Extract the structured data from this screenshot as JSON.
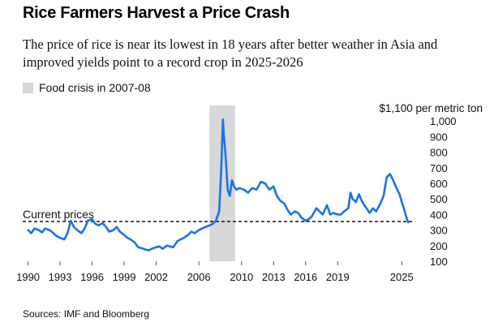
{
  "header": {
    "title": "Rice Farmers Harvest a Price Crash",
    "subtitle": "The price of rice is near its lowest in 18 years after better weather in Asia and improved yields point to a record crop in 2025-2026"
  },
  "legend": {
    "shade_label": "Food crisis in 2007-08"
  },
  "footer": {
    "source": "Sources: IMF and Bloomberg"
  },
  "colors": {
    "line": "#1a73e8",
    "shade": "#d8d8d8",
    "reference": "#000000"
  },
  "chart_data": {
    "type": "line",
    "title": "Rice Farmers Harvest a Price Crash",
    "ylabel": "$1,100 per metric ton",
    "xlabel": "",
    "xlim": [
      1989.5,
      2026.5
    ],
    "ylim": [
      100,
      1100
    ],
    "x_ticks": [
      1990,
      1993,
      1996,
      1999,
      2002,
      2006,
      2010,
      2013,
      2016,
      2019,
      2025
    ],
    "x_tick_labels": [
      "1990",
      "1993",
      "1996",
      "1999",
      "2002",
      "2006",
      "2010",
      "2013",
      "2016",
      "2019",
      "2025"
    ],
    "y_ticks": [
      100,
      200,
      300,
      400,
      500,
      600,
      700,
      800,
      900,
      1000,
      1100
    ],
    "y_tick_labels": [
      "100",
      "200",
      "300",
      "400",
      "500",
      "600",
      "700",
      "800",
      "900",
      "1,000",
      "$1,100 per metric ton"
    ],
    "shaded_region": {
      "label": "Food crisis in 2007-08",
      "x": [
        2007.0,
        2009.4
      ]
    },
    "reference_line": {
      "label": "Current prices",
      "y": 355
    },
    "series": [
      {
        "name": "",
        "x": [
          1990.0,
          1990.3,
          1990.6,
          1991.0,
          1991.3,
          1991.6,
          1992.0,
          1992.3,
          1992.6,
          1993.0,
          1993.4,
          1993.7,
          1994.0,
          1994.3,
          1994.6,
          1995.0,
          1995.3,
          1995.6,
          1996.0,
          1996.3,
          1996.6,
          1997.0,
          1997.3,
          1997.6,
          1998.0,
          1998.3,
          1998.6,
          1999.0,
          1999.3,
          1999.6,
          2000.0,
          2000.3,
          2000.6,
          2001.0,
          2001.3,
          2001.6,
          2002.0,
          2002.3,
          2002.6,
          2003.0,
          2003.3,
          2003.6,
          2004.0,
          2004.3,
          2004.6,
          2005.0,
          2005.3,
          2005.6,
          2006.0,
          2006.3,
          2006.6,
          2007.0,
          2007.3,
          2007.6,
          2007.9,
          2008.1,
          2008.25,
          2008.35,
          2008.5,
          2008.7,
          2008.9,
          2009.1,
          2009.3,
          2009.5,
          2009.8,
          2010.2,
          2010.6,
          2011.0,
          2011.4,
          2011.8,
          2012.2,
          2012.6,
          2013.0,
          2013.3,
          2013.6,
          2014.0,
          2014.3,
          2014.6,
          2015.0,
          2015.3,
          2015.6,
          2016.0,
          2016.3,
          2016.6,
          2017.0,
          2017.3,
          2017.6,
          2018.0,
          2018.3,
          2018.6,
          2019.0,
          2019.3,
          2019.6,
          2020.0,
          2020.2,
          2020.4,
          2020.7,
          2021.0,
          2021.3,
          2021.6,
          2022.0,
          2022.3,
          2022.6,
          2023.0,
          2023.3,
          2023.6,
          2023.9,
          2024.2,
          2024.5,
          2024.8,
          2025.0,
          2025.2,
          2025.4,
          2025.6
        ],
        "y": [
          300,
          280,
          310,
          300,
          285,
          310,
          300,
          285,
          265,
          250,
          240,
          280,
          360,
          320,
          300,
          280,
          310,
          360,
          370,
          340,
          330,
          345,
          320,
          290,
          300,
          320,
          290,
          270,
          250,
          240,
          220,
          190,
          185,
          175,
          170,
          180,
          190,
          195,
          180,
          200,
          195,
          190,
          230,
          240,
          250,
          270,
          290,
          280,
          300,
          310,
          320,
          330,
          340,
          360,
          420,
          700,
          1010,
          900,
          780,
          560,
          520,
          620,
          580,
          560,
          570,
          560,
          540,
          570,
          560,
          610,
          600,
          560,
          580,
          520,
          490,
          470,
          430,
          400,
          420,
          410,
          380,
          360,
          370,
          390,
          440,
          420,
          400,
          460,
          400,
          410,
          400,
          400,
          420,
          440,
          540,
          500,
          480,
          530,
          480,
          450,
          410,
          440,
          420,
          470,
          520,
          640,
          660,
          620,
          570,
          530,
          480,
          440,
          390,
          350
        ]
      }
    ],
    "grid": false,
    "legend_position": "top-left"
  }
}
